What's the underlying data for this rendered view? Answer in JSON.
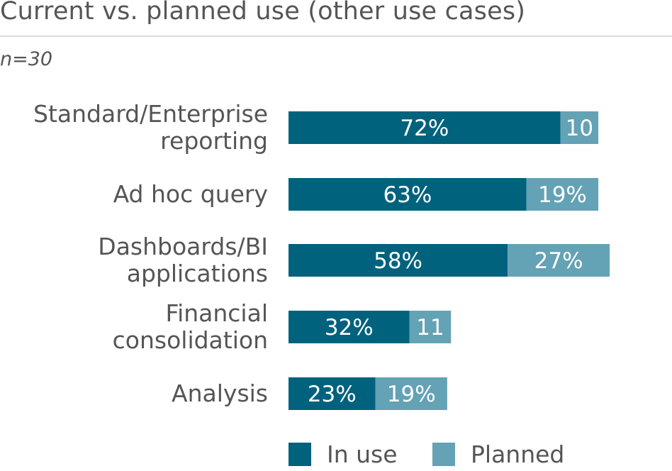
{
  "header": {
    "title": "Current vs. planned use (other use cases)",
    "subtitle": "n=30"
  },
  "chart_data": {
    "type": "bar",
    "orientation": "horizontal",
    "stacked": true,
    "title": "Current vs. planned use (other use cases)",
    "subtitle": "n=30",
    "categories": [
      [
        "Standard/Enterprise",
        "reporting"
      ],
      [
        "Ad hoc query"
      ],
      [
        "Dashboards/BI",
        "applications"
      ],
      [
        "Financial",
        "consolidation"
      ],
      [
        "Analysis"
      ]
    ],
    "series": [
      {
        "name": "In use",
        "color": "#00627d",
        "values": [
          72,
          63,
          58,
          32,
          23
        ],
        "labels": [
          "72%",
          "63%",
          "58%",
          "32%",
          "23%"
        ]
      },
      {
        "name": "Planned",
        "color": "#64a2b5",
        "values": [
          10,
          19,
          27,
          11,
          19
        ],
        "labels": [
          "10",
          "19%",
          "27%",
          "11",
          "19%"
        ]
      }
    ],
    "xlim": [
      0,
      85
    ],
    "legend": "bottom"
  }
}
